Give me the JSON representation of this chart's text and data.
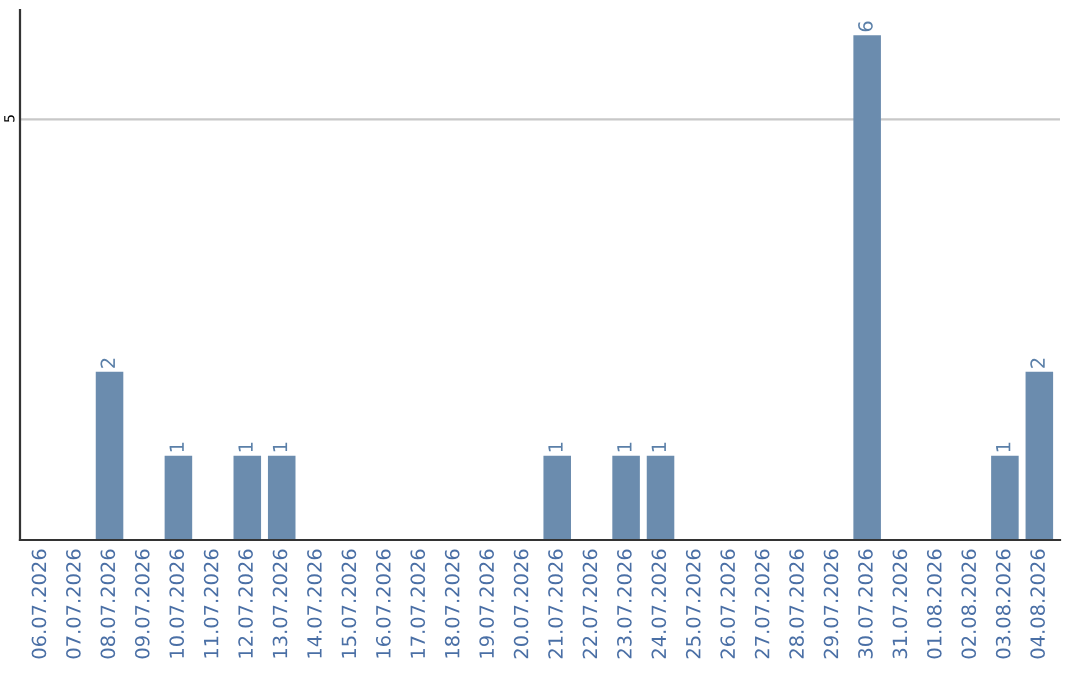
{
  "chart_data": {
    "type": "bar",
    "categories": [
      "06.07.2026",
      "07.07.2026",
      "08.07.2026",
      "09.07.2026",
      "10.07.2026",
      "11.07.2026",
      "12.07.2026",
      "13.07.2026",
      "14.07.2026",
      "15.07.2026",
      "16.07.2026",
      "17.07.2026",
      "18.07.2026",
      "19.07.2026",
      "20.07.2026",
      "21.07.2026",
      "22.07.2026",
      "23.07.2026",
      "24.07.2026",
      "25.07.2026",
      "26.07.2026",
      "27.07.2026",
      "28.07.2026",
      "29.07.2026",
      "30.07.2026",
      "31.07.2026",
      "01.08.2026",
      "02.08.2026",
      "03.08.2026",
      "04.08.2026"
    ],
    "values": [
      0,
      0,
      2,
      0,
      1,
      0,
      1,
      1,
      0,
      0,
      0,
      0,
      0,
      0,
      0,
      1,
      0,
      1,
      1,
      0,
      0,
      0,
      0,
      0,
      6,
      0,
      0,
      0,
      1,
      2
    ],
    "value_labels": [
      null,
      null,
      "2",
      null,
      "1",
      null,
      "1",
      "1",
      null,
      null,
      null,
      null,
      null,
      null,
      null,
      "1",
      null,
      "1",
      "1",
      null,
      null,
      null,
      null,
      null,
      "6",
      null,
      null,
      null,
      "1",
      "2"
    ],
    "color": "#6b8cae",
    "ylim": [
      0,
      6.3
    ],
    "yticks": [
      5
    ],
    "grid": "y"
  }
}
